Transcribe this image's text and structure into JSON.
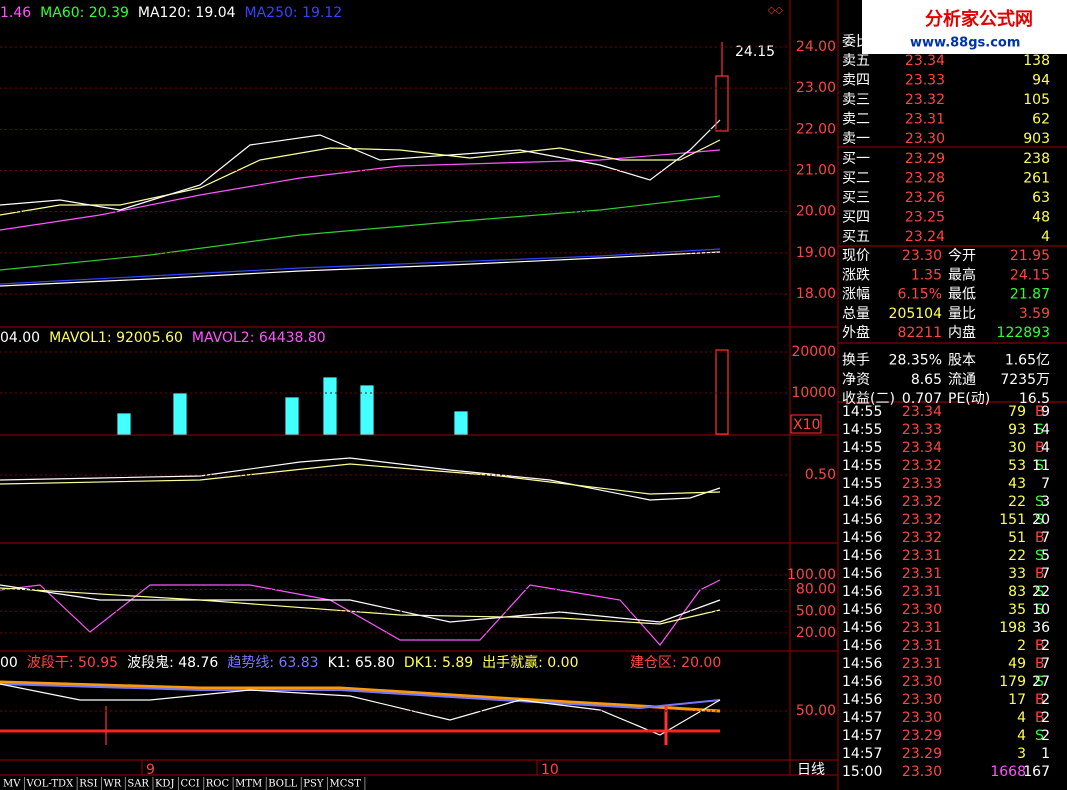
{
  "main_panel": {
    "legend": [
      {
        "text": "1.46",
        "color": "#ff55ff"
      },
      {
        "text": "MA60: 20.39",
        "color": "#33ff33"
      },
      {
        "text": "MA120: 19.04",
        "color": "#ffffff"
      },
      {
        "text": "MA250: 19.12",
        "color": "#3344ff"
      }
    ],
    "ticks": [
      {
        "value": 24,
        "label": "24.00"
      },
      {
        "value": 23,
        "label": "23.00"
      },
      {
        "value": 22,
        "label": "22.00"
      },
      {
        "value": 21,
        "label": "21.00"
      },
      {
        "value": 20,
        "label": "20.00"
      },
      {
        "value": 19,
        "label": "19.00"
      },
      {
        "value": 18,
        "label": "18.00"
      }
    ],
    "peak_label": "24.15"
  },
  "volume_panel": {
    "legend": [
      {
        "text": "04.00",
        "color": "#ffffff"
      },
      {
        "text": "MAVOL1: 92005.60",
        "color": "#ffff55"
      },
      {
        "text": "MAVOL2: 64438.80",
        "color": "#ff55ff"
      }
    ],
    "ticks": [
      {
        "value": 20000,
        "label": "20000"
      },
      {
        "value": 10000,
        "label": "10000"
      }
    ],
    "unit": "X10"
  },
  "macd_panel": {
    "ticks": [
      {
        "value": 0.5,
        "label": "0.50"
      }
    ]
  },
  "kdj_panel": {
    "ticks": [
      {
        "value": 100,
        "label": "100.00"
      },
      {
        "value": 80,
        "label": "80.00"
      },
      {
        "value": 50,
        "label": "50.00"
      },
      {
        "value": 20,
        "label": "20.00"
      }
    ]
  },
  "signal_panel": {
    "legend": [
      {
        "text": "00",
        "color": "#ffffff"
      },
      {
        "text": "波段干: 50.95",
        "color": "#ff4444"
      },
      {
        "text": "波段鬼: 48.76",
        "color": "#ffffff"
      },
      {
        "text": "趋势线: 63.83",
        "color": "#7777ff"
      },
      {
        "text": "K1: 65.80",
        "color": "#ffffff"
      },
      {
        "text": "DK1: 5.89",
        "color": "#ffff55"
      },
      {
        "text": "出手就赢: 0.00",
        "color": "#ffff55"
      }
    ],
    "zone_label": "建仓区: 20.00",
    "ticks": [
      {
        "value": 50,
        "label": "50.00"
      }
    ]
  },
  "x_labels": [
    "9",
    "10"
  ],
  "period": "日线",
  "tabs": [
    "MV",
    "VOL-TDX",
    "RSI",
    "WR",
    "SAR",
    "KDJ",
    "CCI",
    "ROC",
    "MTM",
    "BOLL",
    "PSY",
    "MCST"
  ],
  "logo": {
    "title": "分析家公式网",
    "url": "www.88gs.com"
  },
  "quote": {
    "ratio_label": "委比",
    "sell": [
      [
        "卖五",
        "23.34",
        "138"
      ],
      [
        "卖四",
        "23.33",
        "94"
      ],
      [
        "卖三",
        "23.32",
        "105"
      ],
      [
        "卖二",
        "23.31",
        "62"
      ],
      [
        "卖一",
        "23.30",
        "903"
      ]
    ],
    "buy": [
      [
        "买一",
        "23.29",
        "238"
      ],
      [
        "买二",
        "23.28",
        "261"
      ],
      [
        "买三",
        "23.26",
        "63"
      ],
      [
        "买四",
        "23.25",
        "48"
      ],
      [
        "买五",
        "23.24",
        "4"
      ]
    ],
    "stats": [
      [
        "现价",
        "23.30",
        "今开",
        "21.95"
      ],
      [
        "涨跌",
        "1.35",
        "最高",
        "24.15"
      ],
      [
        "涨幅",
        "6.15%",
        "最低",
        "21.87"
      ],
      [
        "总量",
        "205104",
        "量比",
        "3.59"
      ],
      [
        "外盘",
        "82211",
        "内盘",
        "122893"
      ],
      [
        "换手",
        "28.35%",
        "股本",
        "1.65亿"
      ],
      [
        "净资",
        "8.65",
        "流通",
        "7235万"
      ],
      [
        "收益(二)",
        "0.707",
        "PE(动)",
        "16.5"
      ]
    ],
    "trades": [
      {
        "time": "14:55",
        "price": "23.34",
        "vol": "79",
        "side": "B",
        "count": "9"
      },
      {
        "time": "14:55",
        "price": "23.33",
        "vol": "93",
        "side": "S",
        "count": "14"
      },
      {
        "time": "14:55",
        "price": "23.34",
        "vol": "30",
        "side": "B",
        "count": "4"
      },
      {
        "time": "14:55",
        "price": "23.32",
        "vol": "53",
        "side": "S",
        "count": "11"
      },
      {
        "time": "14:55",
        "price": "23.33",
        "vol": "43",
        "count": "7"
      },
      {
        "time": "14:56",
        "price": "23.32",
        "vol": "22",
        "side": "S",
        "count": "3"
      },
      {
        "time": "14:56",
        "price": "23.32",
        "vol": "151",
        "side": "S",
        "count": "20"
      },
      {
        "time": "14:56",
        "price": "23.32",
        "vol": "51",
        "side": "B",
        "count": "7"
      },
      {
        "time": "14:56",
        "price": "23.31",
        "vol": "22",
        "side": "S",
        "count": "5"
      },
      {
        "time": "14:56",
        "price": "23.31",
        "vol": "33",
        "side": "B",
        "count": "7"
      },
      {
        "time": "14:56",
        "price": "23.31",
        "vol": "83",
        "side": "S",
        "count": "22"
      },
      {
        "time": "14:56",
        "price": "23.30",
        "vol": "35",
        "side": "S",
        "count": "10"
      },
      {
        "time": "14:56",
        "price": "23.31",
        "vol": "198",
        "count": "36"
      },
      {
        "time": "14:56",
        "price": "23.31",
        "vol": "2",
        "side": "B",
        "count": "2"
      },
      {
        "time": "14:56",
        "price": "23.31",
        "vol": "49",
        "side": "B",
        "count": "7"
      },
      {
        "time": "14:56",
        "price": "23.30",
        "vol": "179",
        "side": "S",
        "count": "27"
      },
      {
        "time": "14:56",
        "price": "23.30",
        "vol": "17",
        "side": "B",
        "count": "2"
      },
      {
        "time": "14:57",
        "price": "23.30",
        "vol": "4",
        "side": "B",
        "count": "2"
      },
      {
        "time": "14:57",
        "price": "23.29",
        "vol": "4",
        "side": "S",
        "count": "2"
      },
      {
        "time": "14:57",
        "price": "23.29",
        "vol": "3",
        "count": "1"
      },
      {
        "time": "15:00",
        "price": "23.30",
        "vol": "1668",
        "count": "167"
      }
    ]
  }
}
